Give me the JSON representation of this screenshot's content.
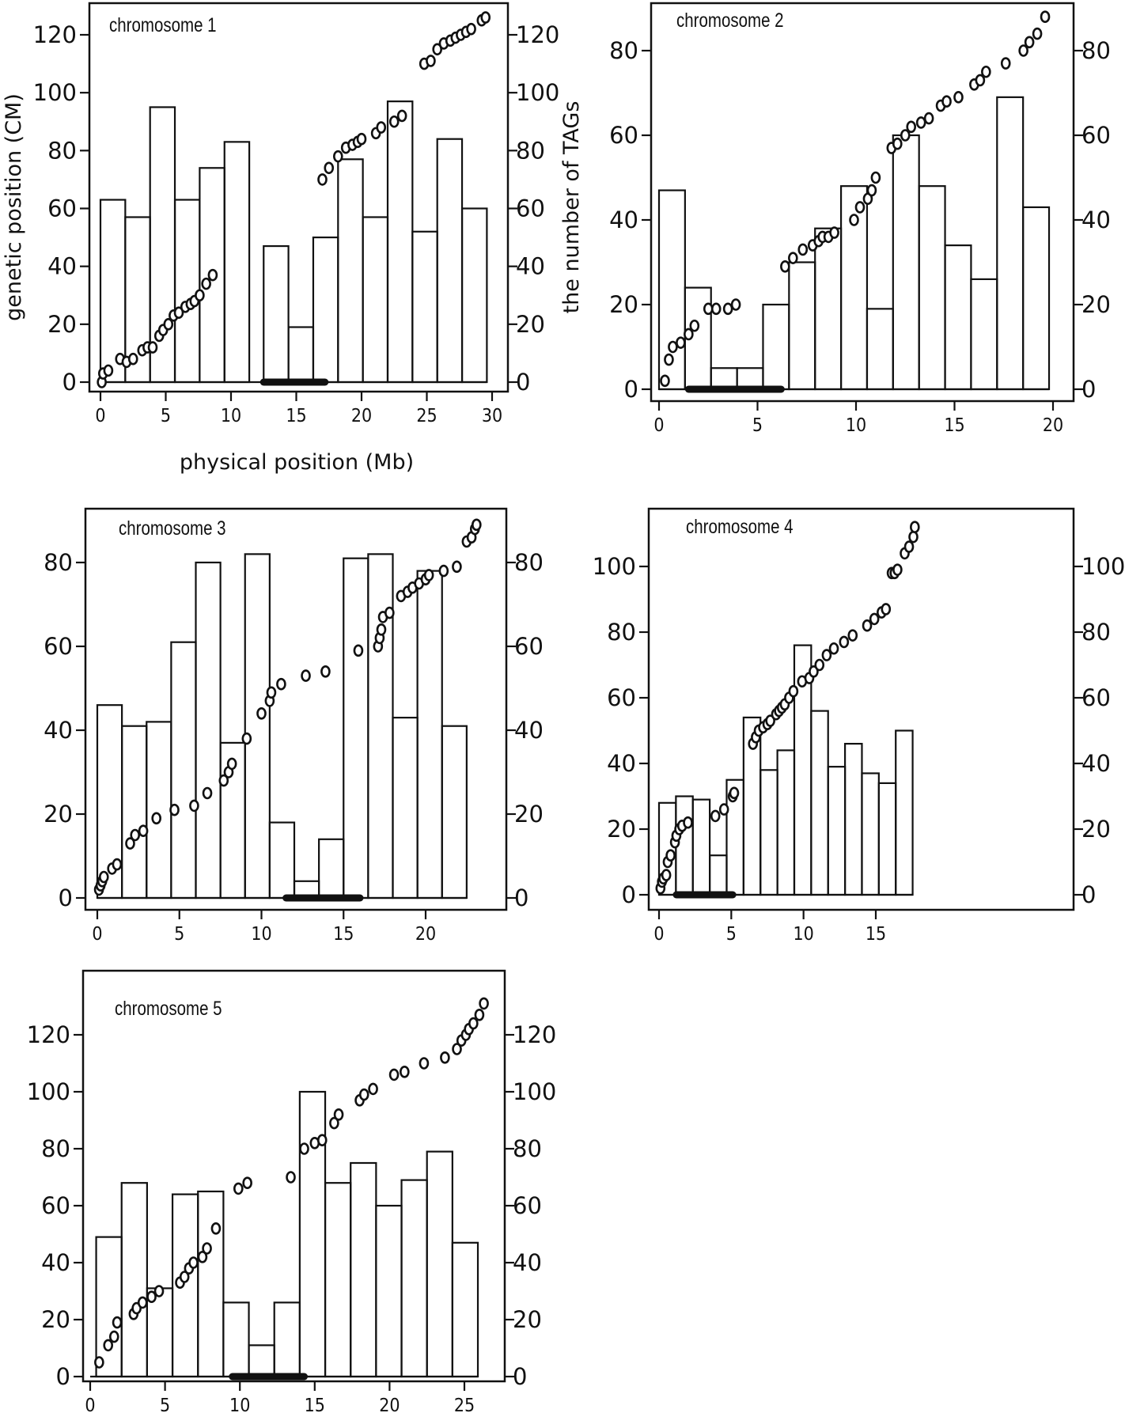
{
  "labels": {
    "y_left": "genetic position (CM)",
    "y_right": "the number of TAGs",
    "x_axis": "physical position (Mb)"
  },
  "chart_data": [
    {
      "type": "bar",
      "title": "chromosome 1",
      "xlabel": "physical position (Mb)",
      "ylabel": "genetic position (CM)",
      "ylabel_right": "the number of TAGs",
      "xlim": [
        0,
        30
      ],
      "ylim": [
        0,
        125
      ],
      "xticks": [
        0,
        5,
        10,
        15,
        20,
        25,
        30
      ],
      "yticks": [
        0,
        20,
        40,
        60,
        80,
        100,
        120
      ],
      "bar_width_mb": 1.9,
      "bars": [
        [
          0,
          63
        ],
        [
          1.9,
          57
        ],
        [
          3.8,
          95
        ],
        [
          5.7,
          63
        ],
        [
          7.6,
          74
        ],
        [
          9.5,
          83
        ],
        [
          12.5,
          47
        ],
        [
          14.4,
          19
        ],
        [
          16.3,
          50
        ],
        [
          18.2,
          77
        ],
        [
          20.1,
          57
        ],
        [
          22.0,
          97
        ],
        [
          23.9,
          52
        ],
        [
          25.8,
          84
        ],
        [
          27.7,
          60
        ]
      ],
      "centromere_mb": [
        12.5,
        17.2
      ],
      "markers": [
        [
          0.1,
          0
        ],
        [
          0.2,
          3
        ],
        [
          0.6,
          4
        ],
        [
          1.5,
          8
        ],
        [
          2.0,
          7
        ],
        [
          2.5,
          8
        ],
        [
          3.2,
          11
        ],
        [
          3.6,
          12
        ],
        [
          4.0,
          12
        ],
        [
          4.5,
          16
        ],
        [
          4.8,
          18
        ],
        [
          5.2,
          20
        ],
        [
          5.6,
          23
        ],
        [
          6.0,
          24
        ],
        [
          6.5,
          26
        ],
        [
          6.9,
          27
        ],
        [
          7.2,
          28
        ],
        [
          7.6,
          30
        ],
        [
          8.1,
          34
        ],
        [
          8.6,
          37
        ],
        [
          17.0,
          70
        ],
        [
          17.5,
          74
        ],
        [
          18.2,
          78
        ],
        [
          18.8,
          81
        ],
        [
          19.3,
          82
        ],
        [
          19.7,
          83
        ],
        [
          20.0,
          84
        ],
        [
          21.1,
          86
        ],
        [
          21.5,
          88
        ],
        [
          22.5,
          90
        ],
        [
          23.1,
          92
        ],
        [
          24.8,
          110
        ],
        [
          25.3,
          111
        ],
        [
          25.8,
          115
        ],
        [
          26.3,
          117
        ],
        [
          26.8,
          118
        ],
        [
          27.2,
          119
        ],
        [
          27.6,
          120
        ],
        [
          28.0,
          121
        ],
        [
          28.4,
          122
        ],
        [
          29.2,
          125
        ],
        [
          29.5,
          126
        ]
      ]
    },
    {
      "type": "bar",
      "title": "chromosome 2",
      "xlim": [
        0,
        20
      ],
      "ylim": [
        0,
        88
      ],
      "xticks": [
        0,
        5,
        10,
        15,
        20
      ],
      "yticks": [
        0,
        20,
        40,
        60,
        80
      ],
      "bar_width_mb": 1.32,
      "bars": [
        [
          0,
          47
        ],
        [
          1.32,
          24
        ],
        [
          2.64,
          5
        ],
        [
          3.96,
          5
        ],
        [
          5.28,
          20
        ],
        [
          6.6,
          30
        ],
        [
          7.92,
          38
        ],
        [
          9.24,
          48
        ],
        [
          10.56,
          19
        ],
        [
          11.88,
          60
        ],
        [
          13.2,
          48
        ],
        [
          14.52,
          34
        ],
        [
          15.84,
          26
        ],
        [
          17.16,
          69
        ],
        [
          18.48,
          43
        ]
      ],
      "centromere_mb": [
        1.5,
        6.2
      ],
      "markers": [
        [
          0.3,
          2
        ],
        [
          0.5,
          7
        ],
        [
          0.7,
          10
        ],
        [
          1.1,
          11
        ],
        [
          1.5,
          13
        ],
        [
          1.8,
          15
        ],
        [
          2.5,
          19
        ],
        [
          2.9,
          19
        ],
        [
          3.5,
          19
        ],
        [
          3.9,
          20
        ],
        [
          6.4,
          29
        ],
        [
          6.8,
          31
        ],
        [
          7.3,
          33
        ],
        [
          7.8,
          34
        ],
        [
          8.1,
          35
        ],
        [
          8.3,
          36
        ],
        [
          8.6,
          36
        ],
        [
          8.9,
          37
        ],
        [
          9.9,
          40
        ],
        [
          10.2,
          43
        ],
        [
          10.6,
          45
        ],
        [
          10.8,
          47
        ],
        [
          11.0,
          50
        ],
        [
          11.8,
          57
        ],
        [
          12.1,
          58
        ],
        [
          12.5,
          60
        ],
        [
          12.8,
          62
        ],
        [
          13.3,
          63
        ],
        [
          13.7,
          64
        ],
        [
          14.3,
          67
        ],
        [
          14.6,
          68
        ],
        [
          15.2,
          69
        ],
        [
          16.0,
          72
        ],
        [
          16.3,
          73
        ],
        [
          16.6,
          75
        ],
        [
          17.6,
          77
        ],
        [
          18.5,
          80
        ],
        [
          18.8,
          82
        ],
        [
          19.2,
          84
        ],
        [
          19.6,
          88
        ]
      ]
    },
    {
      "type": "bar",
      "title": "chromosome 3",
      "xlim": [
        0,
        23
      ],
      "ylim": [
        0,
        89
      ],
      "xticks": [
        0,
        5,
        10,
        15,
        20
      ],
      "yticks": [
        0,
        20,
        40,
        60,
        80
      ],
      "bar_width_mb": 1.5,
      "bars": [
        [
          0,
          46
        ],
        [
          1.5,
          41
        ],
        [
          3.0,
          42
        ],
        [
          4.5,
          61
        ],
        [
          6.0,
          80
        ],
        [
          7.5,
          37
        ],
        [
          9.0,
          82
        ],
        [
          10.5,
          18
        ],
        [
          12.0,
          4
        ],
        [
          13.5,
          14
        ],
        [
          15.0,
          81
        ],
        [
          16.5,
          82
        ],
        [
          18.0,
          43
        ],
        [
          19.5,
          78
        ],
        [
          21.0,
          41
        ]
      ],
      "centromere_mb": [
        11.5,
        16.0
      ],
      "markers": [
        [
          0.1,
          2
        ],
        [
          0.2,
          3
        ],
        [
          0.3,
          4
        ],
        [
          0.4,
          5
        ],
        [
          0.9,
          7
        ],
        [
          1.2,
          8
        ],
        [
          2.0,
          13
        ],
        [
          2.3,
          15
        ],
        [
          2.8,
          16
        ],
        [
          3.6,
          19
        ],
        [
          4.7,
          21
        ],
        [
          5.9,
          22
        ],
        [
          6.7,
          25
        ],
        [
          7.7,
          28
        ],
        [
          8.0,
          30
        ],
        [
          8.2,
          32
        ],
        [
          9.1,
          38
        ],
        [
          10.0,
          44
        ],
        [
          10.5,
          47
        ],
        [
          10.6,
          49
        ],
        [
          11.2,
          51
        ],
        [
          12.7,
          53
        ],
        [
          13.9,
          54
        ],
        [
          15.9,
          59
        ],
        [
          17.1,
          60
        ],
        [
          17.2,
          62
        ],
        [
          17.3,
          64
        ],
        [
          17.4,
          67
        ],
        [
          17.8,
          68
        ],
        [
          18.5,
          72
        ],
        [
          18.9,
          73
        ],
        [
          19.2,
          74
        ],
        [
          19.6,
          75
        ],
        [
          20.0,
          76
        ],
        [
          20.2,
          77
        ],
        [
          21.1,
          78
        ],
        [
          21.9,
          79
        ],
        [
          22.5,
          85
        ],
        [
          22.8,
          86
        ],
        [
          23.0,
          88
        ],
        [
          23.1,
          89
        ]
      ]
    },
    {
      "type": "bar",
      "title": "chromosome 4",
      "xlim": [
        0,
        17.5
      ],
      "ylim": [
        0,
        112
      ],
      "xticks": [
        0,
        5,
        10,
        15
      ],
      "yticks": [
        0,
        20,
        40,
        60,
        80,
        100
      ],
      "bar_width_mb": 1.17,
      "bars": [
        [
          0,
          28
        ],
        [
          1.17,
          30
        ],
        [
          2.34,
          29
        ],
        [
          3.51,
          12
        ],
        [
          4.68,
          35
        ],
        [
          5.85,
          54
        ],
        [
          7.02,
          38
        ],
        [
          8.19,
          44
        ],
        [
          9.36,
          76
        ],
        [
          10.53,
          56
        ],
        [
          11.7,
          39
        ],
        [
          12.87,
          46
        ],
        [
          14.04,
          37
        ],
        [
          15.21,
          34
        ],
        [
          16.38,
          50
        ]
      ],
      "centromere_mb": [
        1.2,
        5.1
      ],
      "markers": [
        [
          0.1,
          2
        ],
        [
          0.2,
          4
        ],
        [
          0.3,
          5
        ],
        [
          0.5,
          6
        ],
        [
          0.6,
          10
        ],
        [
          0.8,
          12
        ],
        [
          1.1,
          16
        ],
        [
          1.2,
          18
        ],
        [
          1.4,
          20
        ],
        [
          1.6,
          21
        ],
        [
          2.0,
          22
        ],
        [
          3.9,
          24
        ],
        [
          4.5,
          26
        ],
        [
          5.1,
          30
        ],
        [
          5.2,
          31
        ],
        [
          6.5,
          46
        ],
        [
          6.7,
          48
        ],
        [
          6.9,
          50
        ],
        [
          7.2,
          51
        ],
        [
          7.5,
          52
        ],
        [
          7.7,
          53
        ],
        [
          8.1,
          55
        ],
        [
          8.3,
          56
        ],
        [
          8.5,
          57
        ],
        [
          8.7,
          58
        ],
        [
          9.0,
          60
        ],
        [
          9.3,
          62
        ],
        [
          9.9,
          65
        ],
        [
          10.4,
          66
        ],
        [
          10.7,
          68
        ],
        [
          11.1,
          70
        ],
        [
          11.6,
          73
        ],
        [
          12.1,
          75
        ],
        [
          12.8,
          77
        ],
        [
          13.4,
          79
        ],
        [
          14.4,
          82
        ],
        [
          14.9,
          84
        ],
        [
          15.4,
          86
        ],
        [
          15.7,
          87
        ],
        [
          16.1,
          98
        ],
        [
          16.3,
          98
        ],
        [
          16.5,
          99
        ],
        [
          17.0,
          104
        ],
        [
          17.3,
          106
        ],
        [
          17.6,
          109
        ],
        [
          17.7,
          112
        ]
      ]
    },
    {
      "type": "bar",
      "title": "chromosome 5",
      "xlim": [
        0,
        26.5
      ],
      "ylim": [
        0,
        131
      ],
      "xticks": [
        0,
        5,
        10,
        15,
        20,
        25
      ],
      "yticks": [
        0,
        20,
        40,
        60,
        80,
        100,
        120
      ],
      "bar_width_mb": 1.7,
      "bars": [
        [
          0.4,
          49
        ],
        [
          2.1,
          68
        ],
        [
          3.8,
          31
        ],
        [
          5.5,
          64
        ],
        [
          7.2,
          65
        ],
        [
          8.9,
          26
        ],
        [
          10.6,
          11
        ],
        [
          12.3,
          26
        ],
        [
          14.0,
          100
        ],
        [
          15.7,
          68
        ],
        [
          17.4,
          75
        ],
        [
          19.1,
          60
        ],
        [
          20.8,
          69
        ],
        [
          22.5,
          79
        ],
        [
          24.2,
          47
        ]
      ],
      "centromere_mb": [
        9.5,
        14.3
      ],
      "markers": [
        [
          0.6,
          5
        ],
        [
          1.2,
          11
        ],
        [
          1.6,
          14
        ],
        [
          1.8,
          19
        ],
        [
          2.9,
          22
        ],
        [
          3.1,
          24
        ],
        [
          3.5,
          26
        ],
        [
          4.1,
          28
        ],
        [
          4.6,
          30
        ],
        [
          6.0,
          33
        ],
        [
          6.3,
          35
        ],
        [
          6.6,
          38
        ],
        [
          6.9,
          40
        ],
        [
          7.5,
          42
        ],
        [
          7.8,
          45
        ],
        [
          8.4,
          52
        ],
        [
          9.9,
          66
        ],
        [
          10.5,
          68
        ],
        [
          13.4,
          70
        ],
        [
          14.3,
          80
        ],
        [
          15.0,
          82
        ],
        [
          15.5,
          83
        ],
        [
          16.3,
          89
        ],
        [
          16.6,
          92
        ],
        [
          18.0,
          97
        ],
        [
          18.3,
          99
        ],
        [
          18.9,
          101
        ],
        [
          20.3,
          106
        ],
        [
          21.0,
          107
        ],
        [
          22.3,
          110
        ],
        [
          23.7,
          112
        ],
        [
          24.5,
          115
        ],
        [
          24.8,
          118
        ],
        [
          25.1,
          120
        ],
        [
          25.3,
          122
        ],
        [
          25.6,
          124
        ],
        [
          26.0,
          127
        ],
        [
          26.3,
          131
        ]
      ]
    }
  ]
}
